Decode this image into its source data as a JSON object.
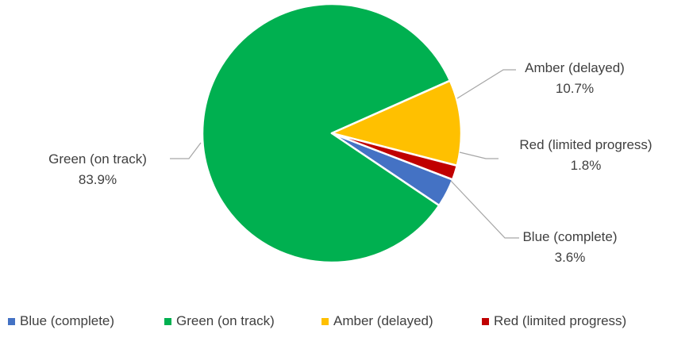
{
  "chart_data": {
    "type": "pie",
    "title": "",
    "legend_position": "bottom",
    "slices": [
      {
        "name": "Blue (complete)",
        "value": 3.6,
        "label": "3.6%",
        "color": "#4472C4"
      },
      {
        "name": "Green (on track)",
        "value": 83.9,
        "label": "83.9%",
        "color": "#00B050"
      },
      {
        "name": "Amber (delayed)",
        "value": 10.7,
        "label": "10.7%",
        "color": "#FFC000"
      },
      {
        "name": "Red (limited progress)",
        "value": 1.8,
        "label": "1.8%",
        "color": "#C00000"
      }
    ]
  }
}
